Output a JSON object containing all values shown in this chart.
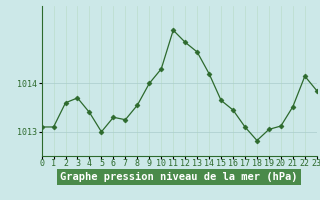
{
  "hours": [
    0,
    1,
    2,
    3,
    4,
    5,
    6,
    7,
    8,
    9,
    10,
    11,
    12,
    13,
    14,
    15,
    16,
    17,
    18,
    19,
    20,
    21,
    22,
    23
  ],
  "pressure": [
    1013.1,
    1013.1,
    1013.6,
    1013.7,
    1013.4,
    1013.0,
    1013.3,
    1013.25,
    1013.55,
    1014.0,
    1014.3,
    1015.1,
    1014.85,
    1014.65,
    1014.2,
    1013.65,
    1013.45,
    1013.1,
    1012.82,
    1013.05,
    1013.12,
    1013.52,
    1014.15,
    1013.85
  ],
  "line_color": "#2d6a2d",
  "marker": "D",
  "marker_size": 2.5,
  "bg_color": "#cce8e8",
  "grid_color": "#aacccc",
  "grid_vcolor": "#bbddcc",
  "xlabel": "Graphe pression niveau de la mer (hPa)",
  "xlabel_fontsize": 7.5,
  "tick_fontsize": 6.0,
  "ylim": [
    1012.5,
    1015.6
  ],
  "yticks": [
    1013,
    1014
  ],
  "axis_color": "#2d6a2d",
  "label_bg": "#4a8a4a",
  "label_fg": "#ffffff",
  "figure_bg": "#cce8e8"
}
